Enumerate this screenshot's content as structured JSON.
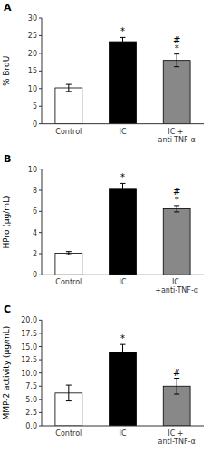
{
  "chart_data": [
    {
      "type": "bar",
      "title": "A",
      "ylabel": "% BrdU",
      "categories": [
        "Control",
        "IC",
        "IC + anti-TNF-α"
      ],
      "values": [
        10.2,
        23.3,
        18.0
      ],
      "errors": [
        1.0,
        1.2,
        1.8
      ],
      "colors": [
        "white",
        "black",
        "#888888"
      ],
      "ylim": [
        0,
        30
      ],
      "yticks": [
        0,
        5,
        10,
        15,
        20,
        25,
        30
      ],
      "grid": false,
      "annotations": [
        {
          "text": "*",
          "category": "IC"
        },
        {
          "text": "*",
          "category": "IC + anti-TNF-α"
        },
        {
          "text": "#",
          "category": "IC + anti-TNF-α"
        }
      ]
    },
    {
      "type": "bar",
      "title": "B",
      "ylabel": "HPro (μg/mL)",
      "categories": [
        "Control",
        "IC",
        "IC +anti-TNF-α"
      ],
      "values": [
        2.05,
        8.1,
        6.25
      ],
      "errors": [
        0.15,
        0.55,
        0.3
      ],
      "colors": [
        "white",
        "black",
        "#888888"
      ],
      "ylim": [
        0,
        10
      ],
      "yticks": [
        0,
        2,
        4,
        6,
        8,
        10
      ],
      "grid": false,
      "annotations": [
        {
          "text": "*",
          "category": "IC"
        },
        {
          "text": "*",
          "category": "IC +anti-TNF-α"
        },
        {
          "text": "#",
          "category": "IC +anti-TNF-α"
        }
      ]
    },
    {
      "type": "bar",
      "title": "C",
      "ylabel": "MMP-2 activity (μg/mL)",
      "categories": [
        "Control",
        "IC",
        "IC + anti-TNF-α"
      ],
      "values": [
        6.2,
        13.9,
        7.5
      ],
      "errors": [
        1.5,
        1.5,
        1.5
      ],
      "colors": [
        "white",
        "black",
        "#888888"
      ],
      "ylim": [
        0,
        20
      ],
      "yticks": [
        {
          "value": 0.0,
          "label": "0.0"
        },
        2.5,
        {
          "value": 5.0,
          "label": "5.0"
        },
        7.5,
        {
          "value": 10.0,
          "label": "10.0"
        },
        12.5,
        {
          "value": 15.0,
          "label": "15.0"
        },
        17.5,
        {
          "value": 20.0,
          "label": "20.0"
        }
      ],
      "grid": false,
      "annotations": [
        {
          "text": "*",
          "category": "IC"
        },
        {
          "text": "#",
          "category": "IC + anti-TNF-α"
        }
      ]
    }
  ]
}
